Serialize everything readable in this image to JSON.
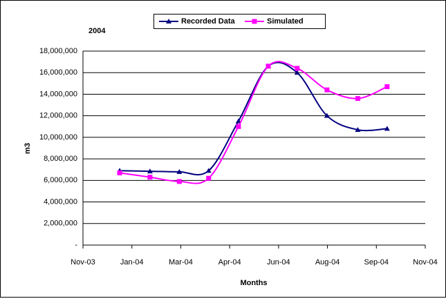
{
  "chart_data": {
    "type": "line",
    "title": "2004",
    "x_label": "Months",
    "y_label": "m3",
    "x": [
      0.75,
      1.37,
      1.97,
      2.57,
      3.18,
      3.79,
      4.38,
      4.99,
      5.62,
      6.22
    ],
    "xlim": [
      0,
      7
    ],
    "xticks": [
      {
        "value": 0,
        "label": "Nov-03"
      },
      {
        "value": 1,
        "label": "Jan-04"
      },
      {
        "value": 2,
        "label": "Mar-04"
      },
      {
        "value": 3,
        "label": "Apr-04"
      },
      {
        "value": 4,
        "label": "Jun-04"
      },
      {
        "value": 5,
        "label": "Aug-04"
      },
      {
        "value": 6,
        "label": "Sep-04"
      },
      {
        "value": 7,
        "label": "Nov-04"
      }
    ],
    "ylim": [
      0,
      18000000
    ],
    "yticks": [
      {
        "value": 0,
        "label": "-"
      },
      {
        "value": 2000000,
        "label": "2,000,000"
      },
      {
        "value": 4000000,
        "label": "4,000,000"
      },
      {
        "value": 6000000,
        "label": "6,000,000"
      },
      {
        "value": 8000000,
        "label": "8,000,000"
      },
      {
        "value": 10000000,
        "label": "10,000,000"
      },
      {
        "value": 12000000,
        "label": "12,000,000"
      },
      {
        "value": 14000000,
        "label": "14,000,000"
      },
      {
        "value": 16000000,
        "label": "16,000,000"
      },
      {
        "value": 18000000,
        "label": "18,000,000"
      }
    ],
    "grid": true,
    "series": [
      {
        "name": "Recorded Data",
        "color": "#000080",
        "marker": "triangle",
        "values": [
          6900000,
          6850000,
          6800000,
          6900000,
          11500000,
          16600000,
          16000000,
          12000000,
          10700000,
          10800000
        ]
      },
      {
        "name": "Simulated",
        "color": "#ff00ff",
        "marker": "square",
        "values": [
          6700000,
          6300000,
          5900000,
          6200000,
          11000000,
          16600000,
          16400000,
          14400000,
          13600000,
          14700000
        ]
      }
    ]
  }
}
